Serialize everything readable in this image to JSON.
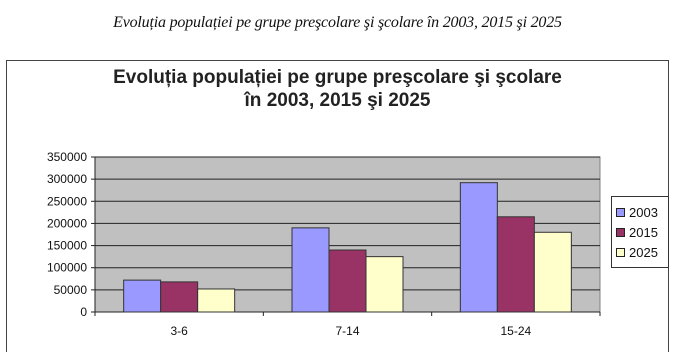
{
  "caption": "Evoluția populației pe grupe preşcolare şi şcolare în 2003, 2015 şi 2025",
  "chart_data": {
    "type": "bar",
    "title_line1": "Evoluția populației pe grupe preşcolare şi şcolare",
    "title_line2": "în 2003, 2015 şi 2025",
    "categories": [
      "3-6",
      "7-14",
      "15-24"
    ],
    "series": [
      {
        "name": "2003",
        "color": "#9999ff",
        "values": [
          72000,
          190000,
          292000
        ]
      },
      {
        "name": "2015",
        "color": "#993366",
        "values": [
          68000,
          140000,
          215000
        ]
      },
      {
        "name": "2025",
        "color": "#ffffcc",
        "values": [
          52000,
          125000,
          180000
        ]
      }
    ],
    "yticks": [
      "0",
      "50000",
      "100000",
      "150000",
      "200000",
      "250000",
      "300000",
      "350000"
    ],
    "ylim": [
      0,
      350000
    ],
    "grid": true,
    "plot_background": "#c0c0c0",
    "legend_position": "right"
  }
}
